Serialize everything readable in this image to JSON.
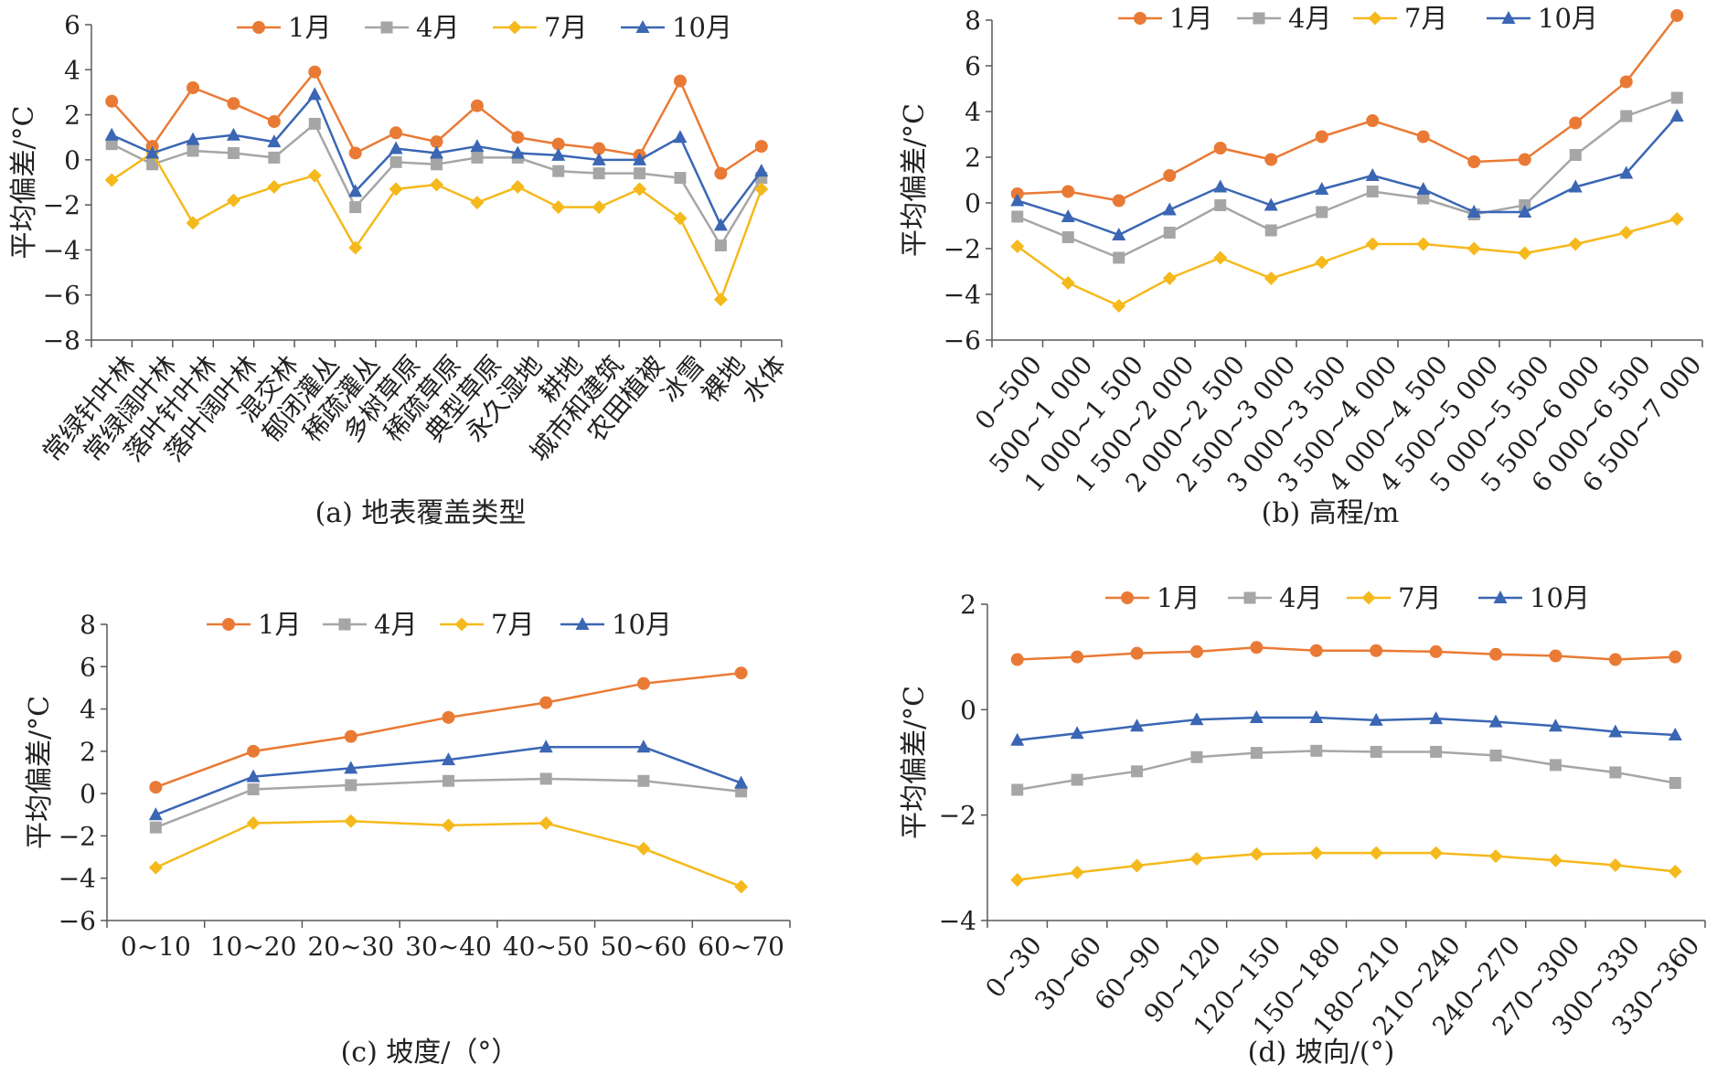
{
  "series_style": {
    "names": [
      "1月",
      "4月",
      "7月",
      "10月"
    ],
    "colors": [
      "#E97A35",
      "#A6A6A6",
      "#F5B91C",
      "#3A66B4"
    ],
    "markers": [
      "circle",
      "square",
      "diamond",
      "triangle"
    ]
  },
  "chart_data": [
    {
      "type": "line",
      "caption": "(a) 地表覆盖类型",
      "ylabel": "平均偏差/°C",
      "ylim": [
        -8,
        6
      ],
      "yticks": [
        6,
        4,
        2,
        0,
        -2,
        -4,
        -6,
        -8
      ],
      "ytick_labels": [
        "6",
        "4",
        "2",
        "0",
        "−2",
        "−4",
        "−6",
        "−8"
      ],
      "categories": [
        "常绿针叶林",
        "常绿阔叶林",
        "落叶针叶林",
        "落叶阔叶林",
        "混交林",
        "郁闭灌丛",
        "稀疏灌丛",
        "多树草原",
        "稀疏草原",
        "典型草原",
        "永久湿地",
        "耕地",
        "城市和建筑",
        "农田植被",
        "冰雪",
        "裸地",
        "水体"
      ],
      "tick_rotation": -50,
      "series": [
        {
          "name": "1月",
          "values": [
            2.6,
            0.6,
            3.2,
            2.5,
            1.7,
            3.9,
            0.3,
            1.2,
            0.8,
            2.4,
            1.0,
            0.7,
            0.5,
            0.2,
            3.5,
            -0.6,
            0.6
          ]
        },
        {
          "name": "4月",
          "values": [
            0.7,
            -0.2,
            0.4,
            0.3,
            0.1,
            1.6,
            -2.1,
            -0.1,
            -0.2,
            0.1,
            0.1,
            -0.5,
            -0.6,
            -0.6,
            -0.8,
            -3.8,
            -0.8
          ]
        },
        {
          "name": "7月",
          "values": [
            -0.9,
            0.3,
            -2.8,
            -1.8,
            -1.2,
            -0.7,
            -3.9,
            -1.3,
            -1.1,
            -1.9,
            -1.2,
            -2.1,
            -2.1,
            -1.3,
            -2.6,
            -6.2,
            -1.3
          ]
        },
        {
          "name": "10月",
          "values": [
            1.1,
            0.3,
            0.9,
            1.1,
            0.8,
            2.9,
            -1.4,
            0.5,
            0.3,
            0.6,
            0.3,
            0.2,
            0.0,
            0.0,
            1.0,
            -2.9,
            -0.5
          ]
        }
      ]
    },
    {
      "type": "line",
      "caption": "(b) 高程/m",
      "ylabel": "平均偏差/°C",
      "ylim": [
        -6,
        8
      ],
      "yticks": [
        8,
        6,
        4,
        2,
        0,
        -2,
        -4,
        -6
      ],
      "ytick_labels": [
        "8",
        "6",
        "4",
        "2",
        "0",
        "−2",
        "−4",
        "−6"
      ],
      "categories": [
        "0~500",
        "500~1 000",
        "1 000~1 500",
        "1 500~2 000",
        "2 000~2 500",
        "2 500~3 000",
        "3 000~3 500",
        "3 500~4 000",
        "4 000~4 500",
        "4 500~5 000",
        "5 000~5 500",
        "5 500~6 000",
        "6 000~6 500",
        "6 500~7 000"
      ],
      "tick_rotation": -50,
      "series": [
        {
          "name": "1月",
          "values": [
            0.4,
            0.5,
            0.1,
            1.2,
            2.4,
            1.9,
            2.9,
            3.6,
            2.9,
            1.8,
            1.9,
            3.5,
            5.3,
            8.2
          ]
        },
        {
          "name": "4月",
          "values": [
            -0.6,
            -1.5,
            -2.4,
            -1.3,
            -0.1,
            -1.2,
            -0.4,
            0.5,
            0.2,
            -0.5,
            -0.1,
            2.1,
            3.8,
            4.6
          ]
        },
        {
          "name": "7月",
          "values": [
            -1.9,
            -3.5,
            -4.5,
            -3.3,
            -2.4,
            -3.3,
            -2.6,
            -1.8,
            -1.8,
            -2.0,
            -2.2,
            -1.8,
            -1.3,
            -0.7
          ]
        },
        {
          "name": "10月",
          "values": [
            0.1,
            -0.6,
            -1.4,
            -0.3,
            0.7,
            -0.1,
            0.6,
            1.2,
            0.6,
            -0.4,
            -0.4,
            0.7,
            1.3,
            3.8
          ]
        }
      ]
    },
    {
      "type": "line",
      "caption": "(c) 坡度/（°）",
      "ylabel": "平均偏差/°C",
      "ylim": [
        -6,
        8
      ],
      "yticks": [
        8,
        6,
        4,
        2,
        0,
        -2,
        -4,
        -6
      ],
      "ytick_labels": [
        "8",
        "6",
        "4",
        "2",
        "0",
        "−2",
        "−4",
        "−6"
      ],
      "categories": [
        "0~10",
        "10~20",
        "20~30",
        "30~40",
        "40~50",
        "50~60",
        "60~70"
      ],
      "tick_rotation": 0,
      "series": [
        {
          "name": "1月",
          "values": [
            0.3,
            2.0,
            2.7,
            3.6,
            4.3,
            5.2,
            5.7
          ]
        },
        {
          "name": "4月",
          "values": [
            -1.6,
            0.2,
            0.4,
            0.6,
            0.7,
            0.6,
            0.1
          ]
        },
        {
          "name": "7月",
          "values": [
            -3.5,
            -1.4,
            -1.3,
            -1.5,
            -1.4,
            -2.6,
            -4.4
          ]
        },
        {
          "name": "10月",
          "values": [
            -1.0,
            0.8,
            1.2,
            1.6,
            2.2,
            2.2,
            0.5
          ]
        }
      ]
    },
    {
      "type": "line",
      "caption": "(d) 坡向/(°)",
      "ylabel": "平均偏差/°C",
      "ylim": [
        -4,
        2
      ],
      "yticks": [
        2,
        0,
        -2,
        -4
      ],
      "ytick_labels": [
        "2",
        "0",
        "−2",
        "−4"
      ],
      "categories": [
        "0~30",
        "30~60",
        "60~90",
        "90~120",
        "120~150",
        "150~180",
        "180~210",
        "210~240",
        "240~270",
        "270~300",
        "300~330",
        "330~360"
      ],
      "tick_rotation": -50,
      "series": [
        {
          "name": "1月",
          "values": [
            0.95,
            1.0,
            1.07,
            1.1,
            1.18,
            1.12,
            1.12,
            1.1,
            1.05,
            1.02,
            0.95,
            1.0
          ]
        },
        {
          "name": "4月",
          "values": [
            -1.52,
            -1.33,
            -1.17,
            -0.9,
            -0.82,
            -0.78,
            -0.8,
            -0.8,
            -0.87,
            -1.05,
            -1.19,
            -1.39
          ]
        },
        {
          "name": "7月",
          "values": [
            -3.23,
            -3.09,
            -2.96,
            -2.83,
            -2.74,
            -2.72,
            -2.72,
            -2.72,
            -2.78,
            -2.86,
            -2.95,
            -3.07
          ]
        },
        {
          "name": "10月",
          "values": [
            -0.58,
            -0.45,
            -0.31,
            -0.19,
            -0.15,
            -0.15,
            -0.2,
            -0.17,
            -0.23,
            -0.31,
            -0.42,
            -0.48
          ]
        }
      ]
    }
  ]
}
